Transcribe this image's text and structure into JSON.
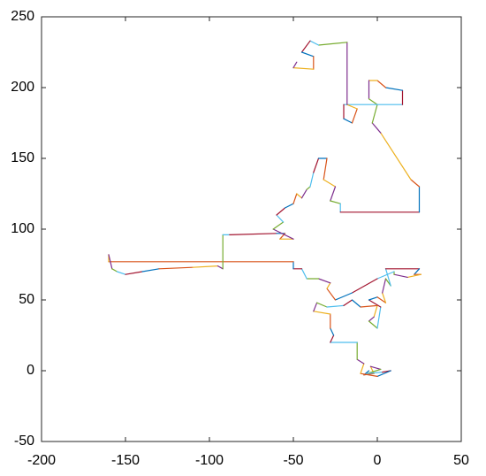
{
  "chart_data": {
    "type": "line",
    "xlim": [
      -200,
      50
    ],
    "ylim": [
      -50,
      250
    ],
    "xticks": [
      -200,
      -150,
      -100,
      -50,
      0,
      50
    ],
    "yticks": [
      -50,
      0,
      50,
      100,
      150,
      200,
      250
    ],
    "colors": [
      "#0072BD",
      "#D95319",
      "#EDB120",
      "#7E2F8E",
      "#77AC30",
      "#4DBEEE",
      "#A2142F"
    ],
    "series": [
      {
        "x": [
          -5,
          -8,
          -2,
          -4,
          2,
          -6,
          3,
          8,
          0,
          -10,
          -8,
          -12,
          -12,
          -28,
          -26,
          -28,
          -28,
          -38,
          -36,
          -30,
          -20,
          -15,
          -10,
          0,
          -2,
          -5,
          0,
          2,
          -5,
          0,
          5,
          3,
          5,
          8,
          5,
          25,
          22,
          26,
          18,
          10,
          10,
          0,
          -15,
          -25,
          -30,
          -28,
          -35,
          -42,
          -45,
          -50,
          -50,
          -160,
          -160,
          -158,
          -155,
          -150,
          -140,
          -130,
          -110,
          -95,
          -92,
          -92,
          -88,
          -60,
          -55,
          -58,
          -50,
          -62,
          -56,
          -60,
          -55,
          -50,
          -48,
          -45,
          -42,
          -40,
          -38,
          -35,
          -30,
          -32,
          -25,
          -28,
          -22,
          -22,
          25,
          25,
          20,
          2,
          -3,
          0,
          15,
          15,
          5,
          0,
          -5,
          -5,
          0,
          -20,
          -20,
          -15,
          -12,
          -18,
          -18,
          -35,
          -40,
          -45,
          -38,
          -38,
          -50,
          -48
        ],
        "y": [
          0,
          -3,
          -2,
          3,
          1,
          -2,
          -1,
          0,
          -4,
          -2,
          5,
          8,
          20,
          20,
          25,
          30,
          40,
          42,
          48,
          45,
          46,
          50,
          45,
          46,
          38,
          35,
          30,
          45,
          50,
          52,
          48,
          55,
          65,
          60,
          72,
          72,
          68,
          68,
          66,
          68,
          70,
          65,
          55,
          50,
          58,
          62,
          65,
          65,
          72,
          72,
          77,
          77,
          82,
          72,
          70,
          68,
          70,
          72,
          73,
          74,
          72,
          96,
          96,
          97,
          97,
          93,
          93,
          100,
          105,
          110,
          115,
          118,
          125,
          122,
          128,
          130,
          140,
          150,
          150,
          135,
          130,
          120,
          118,
          112,
          112,
          130,
          135,
          168,
          175,
          188,
          188,
          198,
          200,
          205,
          205,
          192,
          188,
          188,
          178,
          175,
          185,
          188,
          232,
          230,
          233,
          225,
          222,
          213,
          214,
          218
        ]
      }
    ]
  }
}
